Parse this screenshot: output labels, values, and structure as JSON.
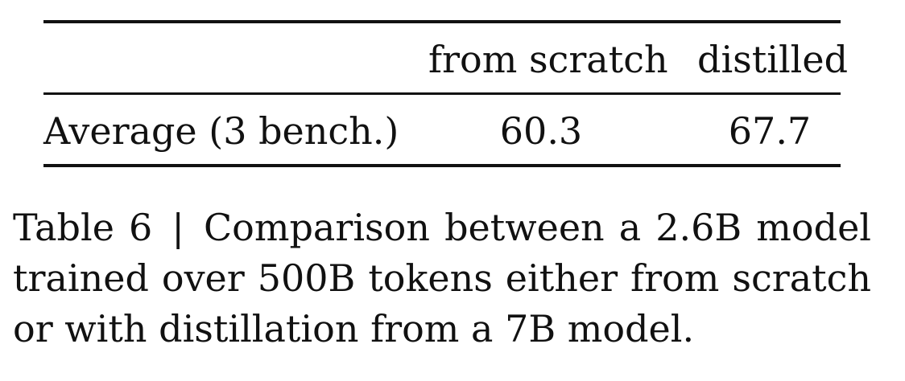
{
  "table": {
    "columns": [
      "",
      "from scratch",
      "distilled"
    ],
    "rows": [
      {
        "label": "Average (3 bench.)",
        "from_scratch": "60.3",
        "distilled": "67.7"
      }
    ]
  },
  "caption": {
    "label": "Table 6",
    "separator": "|",
    "text": "Comparison between a 2.6B model trained over 500B tokens either from scratch or with distillation from a 7B model."
  }
}
